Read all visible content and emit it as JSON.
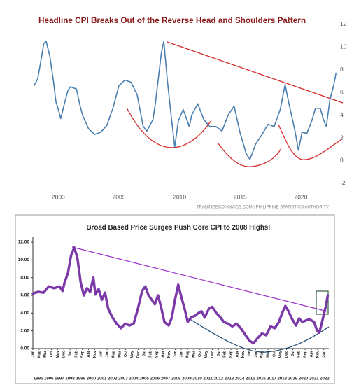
{
  "chart_data": [
    {
      "type": "line",
      "title": "Headline CPI Breaks Out of the Reverse Head and Shoulders Pattern",
      "source": "TRADINGECONOMICS.COM | PHILIPPINE STATISTICS AUTHORITY",
      "color": "#4a7fb0",
      "x": [
        1998.0,
        1998.3,
        1998.6,
        1998.8,
        1999.0,
        1999.3,
        1999.6,
        1999.8,
        2000.0,
        2000.2,
        2000.5,
        2000.8,
        2001.0,
        2001.5,
        2001.8,
        2002.0,
        2002.5,
        2003.0,
        2003.5,
        2004.0,
        2004.5,
        2005.0,
        2005.5,
        2006.0,
        2006.5,
        2007.0,
        2007.3,
        2007.8,
        2008.0,
        2008.5,
        2008.7,
        2009.0,
        2009.3,
        2009.6,
        2009.9,
        2010.3,
        2010.8,
        2011.0,
        2011.5,
        2012.0,
        2012.5,
        2013.0,
        2013.5,
        2014.0,
        2014.5,
        2015.0,
        2015.5,
        2015.8,
        2016.3,
        2016.8,
        2017.3,
        2017.8,
        2018.3,
        2018.7,
        2019.0,
        2019.5,
        2019.8,
        2020.1,
        2020.5,
        2020.9,
        2021.2,
        2021.6,
        2021.9,
        2022.1,
        2022.4,
        2022.7,
        2022.9
      ],
      "values": [
        6.6,
        7.2,
        9.0,
        10.3,
        10.5,
        9.2,
        7.0,
        5.2,
        4.5,
        3.7,
        5.0,
        6.2,
        6.5,
        6.3,
        4.8,
        4.0,
        2.8,
        2.3,
        2.5,
        3.1,
        4.6,
        6.6,
        7.1,
        6.9,
        5.8,
        3.0,
        2.6,
        3.6,
        5.0,
        9.5,
        10.5,
        7.0,
        4.0,
        1.2,
        3.5,
        4.5,
        3.0,
        4.0,
        5.0,
        3.6,
        3.0,
        3.0,
        2.6,
        4.0,
        4.8,
        2.4,
        0.6,
        0.1,
        1.5,
        2.3,
        3.2,
        3.0,
        4.5,
        6.7,
        5.1,
        2.7,
        0.9,
        2.5,
        2.4,
        3.5,
        4.6,
        4.6,
        3.5,
        3.0,
        5.4,
        6.6,
        7.7
      ],
      "xlim": [
        1997.5,
        2023.0
      ],
      "xticks": [
        2000,
        2005,
        2010,
        2015,
        2020
      ],
      "ylim": [
        -2.5,
        12.3
      ],
      "yticks": [
        -2,
        0,
        2,
        4,
        6,
        8,
        10,
        12
      ],
      "grid": false
    },
    {
      "type": "line",
      "title": "Broad Based Price Surges Push Core CPI to 2008 Highs!",
      "color": "#7b3aa8",
      "x": [
        1995.0,
        1995.5,
        1996.0,
        1996.5,
        1997.0,
        1997.5,
        1997.8,
        1998.0,
        1998.3,
        1998.6,
        1998.9,
        1999.2,
        1999.5,
        1999.8,
        2000.1,
        2000.4,
        2000.7,
        2000.9,
        2001.2,
        2001.5,
        2001.8,
        2002.1,
        2002.5,
        2002.9,
        2003.3,
        2003.7,
        2004.1,
        2004.5,
        2004.9,
        2005.3,
        2005.6,
        2005.9,
        2006.2,
        2006.5,
        2006.8,
        2007.1,
        2007.4,
        2007.8,
        2008.1,
        2008.4,
        2008.7,
        2009.0,
        2009.3,
        2009.6,
        2009.9,
        2010.3,
        2010.6,
        2010.9,
        2011.2,
        2011.6,
        2011.9,
        2012.3,
        2012.7,
        2013.0,
        2013.4,
        2013.8,
        2014.2,
        2014.6,
        2015.0,
        2015.4,
        2015.8,
        2016.2,
        2016.6,
        2017.0,
        2017.4,
        2017.8,
        2018.2,
        2018.5,
        2018.8,
        2019.1,
        2019.4,
        2019.8,
        2020.1,
        2020.4,
        2020.8,
        2021.1,
        2021.5,
        2021.8,
        2022.0,
        2022.2,
        2022.4,
        2022.6,
        2022.8
      ],
      "values": [
        6.2,
        6.4,
        6.3,
        7.0,
        6.8,
        7.0,
        6.5,
        7.5,
        8.5,
        10.5,
        11.4,
        10.2,
        7.5,
        6.0,
        6.8,
        6.4,
        8.0,
        6.1,
        6.7,
        5.5,
        6.3,
        4.5,
        3.5,
        2.8,
        2.3,
        2.8,
        2.6,
        2.8,
        4.5,
        6.5,
        7.0,
        6.0,
        5.5,
        5.0,
        6.0,
        4.6,
        3.0,
        2.6,
        3.5,
        5.5,
        7.2,
        5.8,
        4.5,
        3.0,
        3.5,
        3.7,
        4.0,
        4.2,
        3.5,
        4.5,
        4.7,
        4.0,
        3.5,
        3.0,
        2.8,
        2.5,
        2.8,
        2.3,
        1.6,
        0.9,
        0.6,
        1.2,
        1.7,
        1.5,
        2.5,
        2.3,
        3.0,
        4.0,
        4.8,
        4.2,
        3.4,
        2.6,
        3.4,
        3.0,
        3.2,
        3.3,
        3.0,
        2.0,
        1.8,
        2.7,
        3.7,
        4.7,
        6.0
      ],
      "xlim": [
        1995.0,
        2022.9
      ],
      "xticks": [
        {
          "value": 1995.0,
          "label": "Jan"
        },
        {
          "value": 1995.583,
          "label": "Aug"
        },
        {
          "value": 1996.167,
          "label": "Mar"
        },
        {
          "value": 1996.75,
          "label": "Oct"
        },
        {
          "value": 1997.333,
          "label": "May"
        },
        {
          "value": 1997.917,
          "label": "Dec"
        },
        {
          "value": 1998.5,
          "label": "Jul"
        },
        {
          "value": 1999.083,
          "label": "Feb"
        },
        {
          "value": 1999.667,
          "label": "Sep"
        },
        {
          "value": 2000.25,
          "label": "Apr"
        },
        {
          "value": 2000.833,
          "label": "Nov"
        },
        {
          "value": 2001.417,
          "label": "Jun"
        },
        {
          "value": 2002.0,
          "label": "Jan"
        },
        {
          "value": 2002.583,
          "label": "Aug"
        },
        {
          "value": 2003.167,
          "label": "Mar"
        },
        {
          "value": 2003.75,
          "label": "Oct"
        },
        {
          "value": 2004.333,
          "label": "May"
        },
        {
          "value": 2004.917,
          "label": "Dec"
        },
        {
          "value": 2005.5,
          "label": "Jul"
        },
        {
          "value": 2006.083,
          "label": "Feb"
        },
        {
          "value": 2006.667,
          "label": "Sep"
        },
        {
          "value": 2007.25,
          "label": "Apr"
        },
        {
          "value": 2007.833,
          "label": "Nov"
        },
        {
          "value": 2008.417,
          "label": "Jun"
        },
        {
          "value": 2009.0,
          "label": "Jan"
        },
        {
          "value": 2009.583,
          "label": "Aug"
        },
        {
          "value": 2010.167,
          "label": "Mar"
        },
        {
          "value": 2010.75,
          "label": "Oct"
        },
        {
          "value": 2011.333,
          "label": "May"
        },
        {
          "value": 2011.917,
          "label": "Dec"
        },
        {
          "value": 2012.5,
          "label": "Jul"
        },
        {
          "value": 2013.083,
          "label": "Feb"
        },
        {
          "value": 2013.667,
          "label": "Sep"
        },
        {
          "value": 2014.25,
          "label": "Apr"
        },
        {
          "value": 2014.833,
          "label": "Nov"
        },
        {
          "value": 2015.417,
          "label": "Jun"
        },
        {
          "value": 2016.0,
          "label": "Jan"
        },
        {
          "value": 2016.583,
          "label": "Aug"
        },
        {
          "value": 2017.167,
          "label": "Mar"
        },
        {
          "value": 2017.75,
          "label": "Oct"
        },
        {
          "value": 2018.333,
          "label": "May"
        },
        {
          "value": 2018.917,
          "label": "Dec"
        },
        {
          "value": 2019.5,
          "label": "Jul"
        },
        {
          "value": 2020.083,
          "label": "Feb"
        },
        {
          "value": 2020.667,
          "label": "Sep"
        },
        {
          "value": 2021.25,
          "label": "Apr"
        },
        {
          "value": 2021.833,
          "label": "Nov"
        },
        {
          "value": 2022.417,
          "label": "Jun"
        }
      ],
      "x_year_ticks": [
        1995,
        1996,
        1997,
        1998,
        1999,
        2000,
        2001,
        2002,
        2003,
        2004,
        2005,
        2006,
        2007,
        2008,
        2009,
        2010,
        2011,
        2012,
        2013,
        2014,
        2015,
        2016,
        2017,
        2018,
        2019,
        2020,
        2021,
        2022
      ],
      "ylim": [
        0,
        12
      ],
      "yticks": [
        {
          "value": 0,
          "label": "0.00"
        },
        {
          "value": 2,
          "label": "2.00"
        },
        {
          "value": 4,
          "label": "4.00"
        },
        {
          "value": 6,
          "label": "6.00"
        },
        {
          "value": 8,
          "label": "8.00"
        },
        {
          "value": 10,
          "label": "10.00"
        },
        {
          "value": 12,
          "label": "12.00"
        }
      ],
      "grid": false
    }
  ]
}
